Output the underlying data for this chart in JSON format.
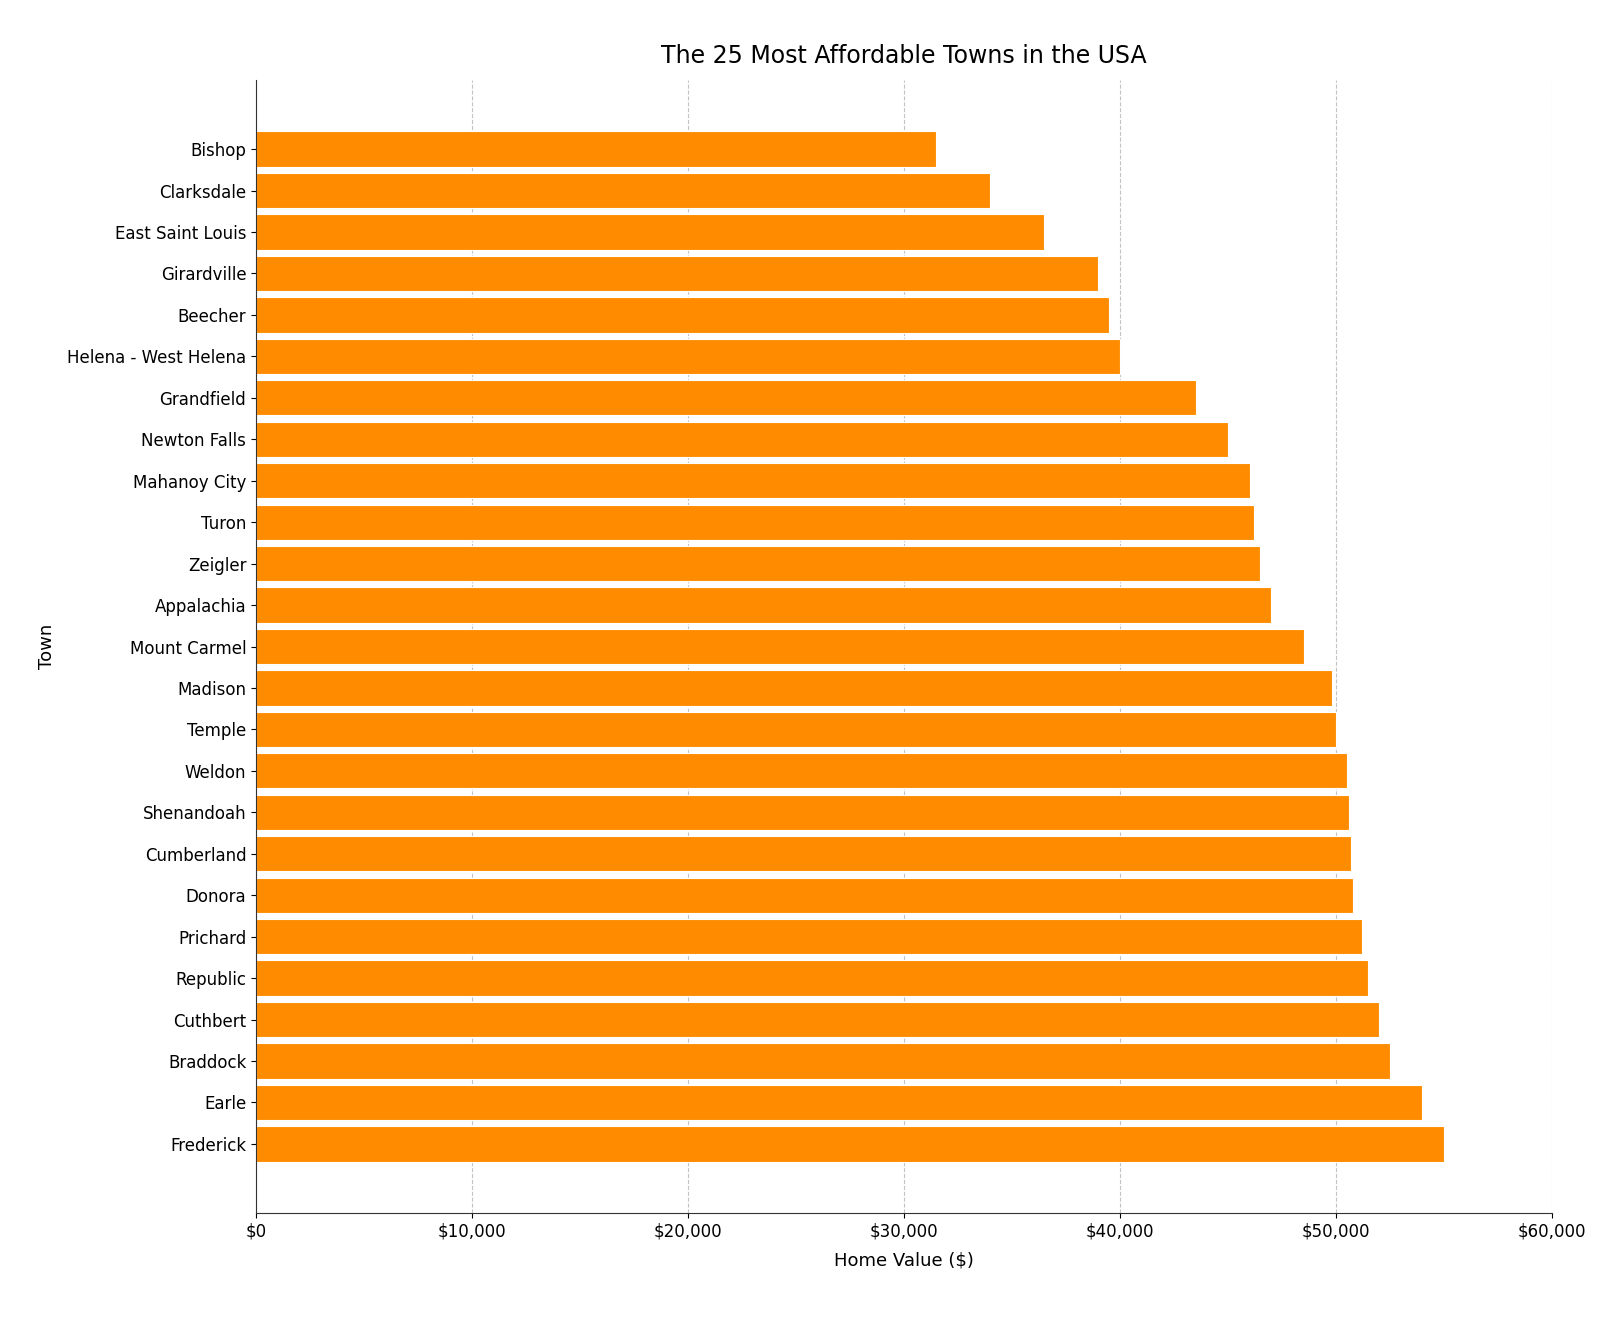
{
  "title": "The 25 Most Affordable Towns in the USA",
  "xlabel": "Home Value ($)",
  "ylabel": "Town",
  "bar_color": "#FF8C00",
  "background_color": "#FFFFFF",
  "towns": [
    "Frederick",
    "Earle",
    "Braddock",
    "Cuthbert",
    "Republic",
    "Prichard",
    "Donora",
    "Cumberland",
    "Shenandoah",
    "Weldon",
    "Temple",
    "Madison",
    "Mount Carmel",
    "Appalachia",
    "Zeigler",
    "Turon",
    "Mahanoy City",
    "Newton Falls",
    "Grandfield",
    "Helena - West Helena",
    "Beecher",
    "Girardville",
    "East Saint Louis",
    "Clarksdale",
    "Bishop"
  ],
  "values": [
    55000,
    54000,
    52500,
    52000,
    51500,
    51200,
    50800,
    50700,
    50600,
    50500,
    50000,
    49800,
    48500,
    47000,
    46500,
    46200,
    46000,
    45000,
    43500,
    40000,
    39500,
    39000,
    36500,
    34000,
    31500
  ],
  "xlim": [
    0,
    60000
  ],
  "xtick_values": [
    0,
    10000,
    20000,
    30000,
    40000,
    50000,
    60000
  ],
  "title_fontsize": 17,
  "axis_label_fontsize": 13,
  "tick_fontsize": 12
}
